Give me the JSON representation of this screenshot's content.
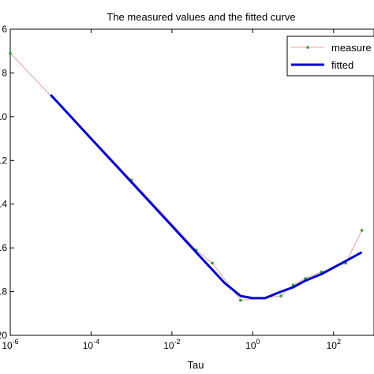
{
  "chart_data": {
    "type": "line",
    "title": "The measured values and the fitted curve",
    "xlabel": "Tau",
    "ylabel": "",
    "x_scale": "log10",
    "xlim": [
      1e-06,
      1000.0
    ],
    "ylim": [
      -20,
      -6
    ],
    "x_ticks": [
      {
        "value": 1e-06,
        "base": "10",
        "exp": "-6"
      },
      {
        "value": 0.0001,
        "base": "10",
        "exp": "-4"
      },
      {
        "value": 0.01,
        "base": "10",
        "exp": "-2"
      },
      {
        "value": 1.0,
        "base": "10",
        "exp": "0"
      },
      {
        "value": 100.0,
        "base": "10",
        "exp": "2"
      }
    ],
    "y_ticks": [
      {
        "value": -6,
        "label": "6"
      },
      {
        "value": -8,
        "label": "8"
      },
      {
        "value": -10,
        "label": "10"
      },
      {
        "value": -12,
        "label": "12"
      },
      {
        "value": -14,
        "label": "14"
      },
      {
        "value": -16,
        "label": "16"
      },
      {
        "value": -18,
        "label": "18"
      },
      {
        "value": -20,
        "label": "20"
      }
    ],
    "grid": false,
    "legend_position": "top-right",
    "series": [
      {
        "name": "measured",
        "legend_label": "measure",
        "color": "#e8a0a0",
        "marker_color": "#2e9e2e",
        "line_width": 1,
        "x": [
          1e-06,
          0.001,
          0.04,
          0.1,
          0.5,
          5,
          10,
          20,
          50,
          100,
          200,
          500
        ],
        "y": [
          -7.1,
          -12.9,
          -16.1,
          -16.7,
          -18.4,
          -18.2,
          -17.7,
          -17.4,
          -17.1,
          -16.9,
          -16.7,
          -15.2
        ]
      },
      {
        "name": "fitted",
        "legend_label": "fitted",
        "color": "#0000c8",
        "line_width": 3,
        "x": [
          1e-05,
          0.0001,
          0.001,
          0.01,
          0.1,
          0.2,
          0.5,
          1,
          2,
          5,
          10,
          20,
          50,
          100,
          200,
          500
        ],
        "y": [
          -9.0,
          -11.0,
          -13.0,
          -15.0,
          -17.0,
          -17.6,
          -18.2,
          -18.3,
          -18.3,
          -18.0,
          -17.8,
          -17.5,
          -17.2,
          -16.9,
          -16.6,
          -16.2
        ]
      }
    ]
  }
}
